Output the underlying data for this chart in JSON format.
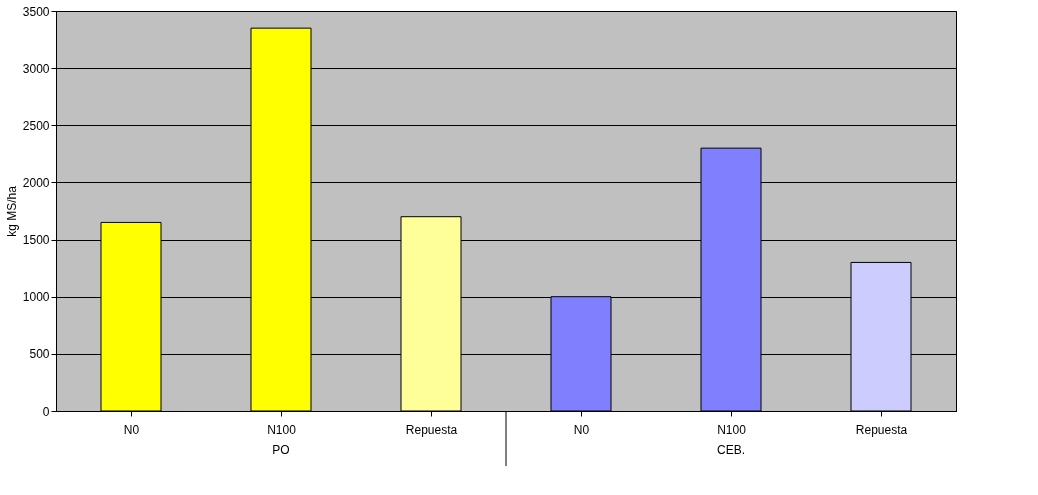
{
  "chart_data": {
    "type": "bar",
    "categories": [
      "N0",
      "N100",
      "Repuesta",
      "N0",
      "N100",
      "Repuesta"
    ],
    "values": [
      1650,
      3350,
      1700,
      1000,
      2300,
      1300
    ],
    "colors": [
      "#ffff00",
      "#ffff00",
      "#ffff99",
      "#8080ff",
      "#8080ff",
      "#ccccff"
    ],
    "ylabel": "kg MS/ha",
    "ylim": [
      0,
      3500
    ],
    "yticks": [
      0,
      500,
      1000,
      1500,
      2000,
      2500,
      3000,
      3500
    ],
    "grid": "y",
    "annotations": [
      "PO",
      "CEB."
    ]
  }
}
